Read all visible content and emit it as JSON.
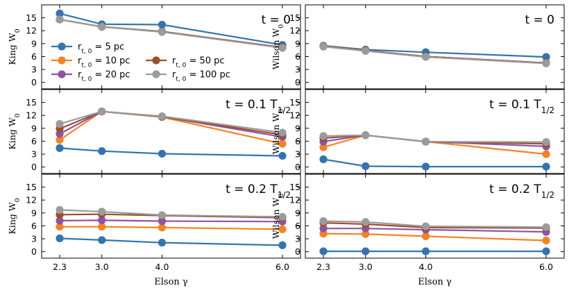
{
  "chart_data": {
    "type": "line",
    "xlabel": "Elson γ",
    "x": [
      2.3,
      3.0,
      4.0,
      6.0
    ],
    "xticks": [
      "2.3",
      "3.0",
      "4.0",
      "6.0"
    ],
    "xlim": [
      2.0,
      6.3
    ],
    "ylim": [
      -1.5,
      18.0
    ],
    "yticks": [
      "0",
      "3",
      "6",
      "9",
      "12",
      "15"
    ],
    "legend": {
      "panel": "king-t0",
      "entries": [
        {
          "label_main": "r",
          "label_sub": "t, 0",
          "label_rest": " = 5 pc",
          "color": "#3274b0"
        },
        {
          "label_main": "r",
          "label_sub": "t, 0",
          "label_rest": " = 10 pc",
          "color": "#f5821f"
        },
        {
          "label_main": "r",
          "label_sub": "t, 0",
          "label_rest": " = 20 pc",
          "color": "#9052a6"
        },
        {
          "label_main": "r",
          "label_sub": "t, 0",
          "label_rest": " = 50 pc",
          "color": "#9a4f2b"
        },
        {
          "label_main": "r",
          "label_sub": "t, 0",
          "label_rest": " = 100 pc",
          "color": "#9b9b9b"
        }
      ]
    },
    "panels": [
      {
        "id": "king-t0",
        "ylabel_main": "King W",
        "ylabel_sub": "0",
        "title_main": "t = 0",
        "title_sub": "",
        "title_tail": "",
        "series": [
          {
            "name": "5 pc",
            "color": "#3274b0",
            "values": [
              16.0,
              13.5,
              13.4,
              8.7
            ]
          },
          {
            "name": "10 pc",
            "color": "#f5821f",
            "values": [
              14.6,
              12.9,
              11.8,
              8.1
            ]
          },
          {
            "name": "20 pc",
            "color": "#9052a6",
            "values": [
              14.6,
              12.9,
              11.8,
              8.1
            ]
          },
          {
            "name": "50 pc",
            "color": "#9a4f2b",
            "values": [
              14.6,
              12.9,
              11.8,
              8.1
            ]
          },
          {
            "name": "100 pc",
            "color": "#9b9b9b",
            "values": [
              14.6,
              12.9,
              11.7,
              8.0
            ]
          }
        ]
      },
      {
        "id": "wilson-t0",
        "ylabel_main": "Wilson W",
        "ylabel_sub": "0",
        "title_main": "t = 0",
        "title_sub": "",
        "title_tail": "",
        "series": [
          {
            "name": "5 pc",
            "color": "#3274b0",
            "values": [
              8.5,
              7.6,
              7.0,
              5.9
            ]
          },
          {
            "name": "10 pc",
            "color": "#f5821f",
            "values": [
              8.4,
              7.4,
              6.0,
              4.5
            ]
          },
          {
            "name": "20 pc",
            "color": "#9052a6",
            "values": [
              8.4,
              7.4,
              6.0,
              4.5
            ]
          },
          {
            "name": "50 pc",
            "color": "#9a4f2b",
            "values": [
              8.4,
              7.4,
              6.0,
              4.5
            ]
          },
          {
            "name": "100 pc",
            "color": "#9b9b9b",
            "values": [
              8.3,
              7.3,
              5.9,
              4.4
            ]
          }
        ]
      },
      {
        "id": "king-t01",
        "ylabel_main": "King W",
        "ylabel_sub": "0",
        "title_main": "t = 0.1 T",
        "title_sub": "1/2",
        "title_tail": "",
        "series": [
          {
            "name": "5 pc",
            "color": "#3274b0",
            "values": [
              4.4,
              3.7,
              3.1,
              2.6
            ]
          },
          {
            "name": "10 pc",
            "color": "#f5821f",
            "values": [
              6.3,
              12.9,
              11.6,
              5.4
            ]
          },
          {
            "name": "20 pc",
            "color": "#9052a6",
            "values": [
              7.7,
              12.9,
              11.7,
              7.0
            ]
          },
          {
            "name": "50 pc",
            "color": "#9a4f2b",
            "values": [
              8.9,
              12.9,
              11.7,
              7.5
            ]
          },
          {
            "name": "100 pc",
            "color": "#9b9b9b",
            "values": [
              10.0,
              12.9,
              11.8,
              8.0
            ]
          }
        ]
      },
      {
        "id": "wilson-t01",
        "ylabel_main": "Wilson W",
        "ylabel_sub": "0",
        "title_main": "t = 0.1 T",
        "title_sub": "1/2",
        "title_tail": "",
        "series": [
          {
            "name": "5 pc",
            "color": "#3274b0",
            "values": [
              1.8,
              0.2,
              0.1,
              0.1
            ]
          },
          {
            "name": "10 pc",
            "color": "#f5821f",
            "values": [
              4.6,
              7.4,
              5.9,
              3.0
            ]
          },
          {
            "name": "20 pc",
            "color": "#9052a6",
            "values": [
              5.9,
              7.4,
              5.9,
              4.8
            ]
          },
          {
            "name": "50 pc",
            "color": "#9a4f2b",
            "values": [
              6.7,
              7.4,
              5.9,
              5.4
            ]
          },
          {
            "name": "100 pc",
            "color": "#9b9b9b",
            "values": [
              7.2,
              7.4,
              5.9,
              5.8
            ]
          }
        ]
      },
      {
        "id": "king-t02",
        "ylabel_main": "King W",
        "ylabel_sub": "0",
        "title_main": "t = 0.2 T",
        "title_sub": "1/2",
        "title_tail": "",
        "series": [
          {
            "name": "5 pc",
            "color": "#3274b0",
            "values": [
              3.1,
              2.7,
              2.1,
              1.5
            ]
          },
          {
            "name": "10 pc",
            "color": "#f5821f",
            "values": [
              5.8,
              5.8,
              5.6,
              5.2
            ]
          },
          {
            "name": "20 pc",
            "color": "#9052a6",
            "values": [
              7.2,
              7.3,
              7.1,
              7.0
            ]
          },
          {
            "name": "50 pc",
            "color": "#9a4f2b",
            "values": [
              8.6,
              8.7,
              8.4,
              7.9
            ]
          },
          {
            "name": "100 pc",
            "color": "#9b9b9b",
            "values": [
              9.7,
              9.3,
              8.5,
              8.1
            ]
          }
        ]
      },
      {
        "id": "wilson-t02",
        "ylabel_main": "Wilson W",
        "ylabel_sub": "0",
        "title_main": "t = 0.2 T",
        "title_sub": "1/2",
        "title_tail": "",
        "series": [
          {
            "name": "5 pc",
            "color": "#3274b0",
            "values": [
              0.1,
              0.1,
              0.1,
              0.1
            ]
          },
          {
            "name": "10 pc",
            "color": "#f5821f",
            "values": [
              4.2,
              4.1,
              3.6,
              2.6
            ]
          },
          {
            "name": "20 pc",
            "color": "#9052a6",
            "values": [
              5.4,
              5.4,
              5.1,
              4.6
            ]
          },
          {
            "name": "50 pc",
            "color": "#9a4f2b",
            "values": [
              6.7,
              6.4,
              5.6,
              5.5
            ]
          },
          {
            "name": "100 pc",
            "color": "#9b9b9b",
            "values": [
              7.1,
              6.9,
              5.9,
              5.7
            ]
          }
        ]
      }
    ]
  }
}
